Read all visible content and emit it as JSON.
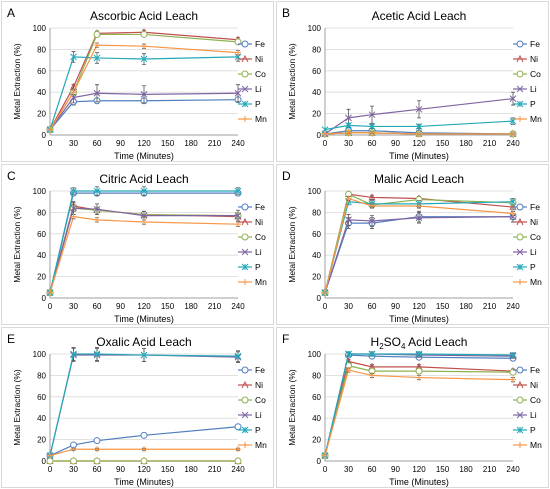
{
  "colors": {
    "Fe": "#4f7fbf",
    "Ni": "#c0504d",
    "Co": "#8db24f",
    "Li": "#8064a2",
    "P": "#23a8b8",
    "Mn": "#f79646"
  },
  "chart_data": [
    {
      "panel_letter": "A",
      "type": "line",
      "title": "Ascorbic Acid Leach",
      "title_sub": "",
      "title_post": "",
      "xlabel": "Time (Minutes)",
      "ylabel": "Metal Extraction (%)",
      "x": [
        0,
        30,
        60,
        120,
        240
      ],
      "xticks": [
        "0",
        "30",
        "60",
        "90",
        "120",
        "150",
        "180",
        "210",
        "240"
      ],
      "yticks": [
        "0",
        "20",
        "40",
        "60",
        "80",
        "100"
      ],
      "xlim": [
        0,
        240
      ],
      "ylim": [
        0,
        100
      ],
      "legend": "right",
      "series": [
        {
          "name": "Fe",
          "values": [
            5,
            31,
            32,
            32,
            33
          ],
          "errors": [
            0,
            3,
            2,
            2,
            2
          ]
        },
        {
          "name": "Ni",
          "values": [
            5,
            45,
            95,
            96,
            89
          ],
          "errors": [
            0,
            2,
            2,
            2,
            2
          ]
        },
        {
          "name": "Co",
          "values": [
            5,
            40,
            94,
            94,
            87
          ],
          "errors": [
            0,
            2,
            2,
            2,
            2
          ]
        },
        {
          "name": "Li",
          "values": [
            5,
            35,
            39,
            38,
            39
          ],
          "errors": [
            0,
            5,
            8,
            8,
            8
          ]
        },
        {
          "name": "P",
          "values": [
            5,
            73,
            72,
            71,
            73
          ],
          "errors": [
            0,
            5,
            5,
            5,
            4
          ]
        },
        {
          "name": "Mn",
          "values": [
            5,
            40,
            84,
            83,
            77
          ],
          "errors": [
            0,
            2,
            2,
            2,
            2
          ]
        }
      ]
    },
    {
      "panel_letter": "B",
      "type": "line",
      "title": "Acetic Acid Leach",
      "title_sub": "",
      "title_post": "",
      "xlabel": "Time (Minutes)",
      "ylabel": "Metal Extraction (%)",
      "x": [
        0,
        30,
        60,
        120,
        240
      ],
      "xticks": [
        "0",
        "30",
        "60",
        "90",
        "120",
        "150",
        "180",
        "210",
        "240"
      ],
      "yticks": [
        "0",
        "20",
        "40",
        "60",
        "80",
        "100"
      ],
      "xlim": [
        0,
        240
      ],
      "ylim": [
        0,
        100
      ],
      "legend": "right",
      "series": [
        {
          "name": "Fe",
          "values": [
            1,
            4,
            4,
            2,
            1
          ],
          "errors": [
            0,
            2,
            2,
            2,
            1
          ]
        },
        {
          "name": "Ni",
          "values": [
            1,
            2,
            2,
            1,
            1
          ],
          "errors": [
            0,
            1,
            1,
            1,
            1
          ]
        },
        {
          "name": "Co",
          "values": [
            1,
            2,
            2,
            1,
            1
          ],
          "errors": [
            0,
            1,
            1,
            1,
            1
          ]
        },
        {
          "name": "Li",
          "values": [
            1,
            16,
            19,
            24,
            34
          ],
          "errors": [
            0,
            8,
            8,
            8,
            6
          ]
        },
        {
          "name": "P",
          "values": [
            5,
            9,
            8,
            8,
            13
          ],
          "errors": [
            0,
            2,
            2,
            2,
            3
          ]
        },
        {
          "name": "Mn",
          "values": [
            1,
            2,
            2,
            1,
            1
          ],
          "errors": [
            0,
            1,
            1,
            1,
            1
          ]
        }
      ]
    },
    {
      "panel_letter": "C",
      "type": "line",
      "title": "Citric Acid Leach",
      "title_sub": "",
      "title_post": "",
      "xlabel": "Time (Minutes)",
      "ylabel": "Metal Extraction (%)",
      "x": [
        0,
        30,
        60,
        120,
        240
      ],
      "xticks": [
        "0",
        "30",
        "60",
        "90",
        "120",
        "150",
        "180",
        "210",
        "240"
      ],
      "yticks": [
        "0",
        "20",
        "40",
        "60",
        "80",
        "100"
      ],
      "xlim": [
        0,
        240
      ],
      "ylim": [
        0,
        100
      ],
      "legend": "right",
      "series": [
        {
          "name": "Fe",
          "values": [
            5,
            98,
            98,
            98,
            98
          ],
          "errors": [
            0,
            2,
            2,
            2,
            2
          ]
        },
        {
          "name": "Ni",
          "values": [
            5,
            86,
            82,
            78,
            76
          ],
          "errors": [
            0,
            3,
            2,
            2,
            2
          ]
        },
        {
          "name": "Co",
          "values": [
            5,
            84,
            82,
            78,
            77
          ],
          "errors": [
            0,
            3,
            2,
            2,
            2
          ]
        },
        {
          "name": "Li",
          "values": [
            5,
            84,
            83,
            77,
            77
          ],
          "errors": [
            0,
            6,
            5,
            4,
            5
          ]
        },
        {
          "name": "P",
          "values": [
            5,
            100,
            100,
            100,
            100
          ],
          "errors": [
            0,
            3,
            4,
            4,
            3
          ]
        },
        {
          "name": "Mn",
          "values": [
            5,
            76,
            73,
            71,
            69
          ],
          "errors": [
            0,
            2,
            2,
            2,
            2
          ]
        }
      ]
    },
    {
      "panel_letter": "D",
      "type": "line",
      "title": "Malic Acid Leach",
      "title_sub": "",
      "title_post": "",
      "xlabel": "Time (Minutes)",
      "ylabel": "Metal Extraction (%)",
      "x": [
        0,
        30,
        60,
        120,
        240
      ],
      "xticks": [
        "0",
        "30",
        "60",
        "90",
        "120",
        "150",
        "180",
        "210",
        "240"
      ],
      "yticks": [
        "0",
        "20",
        "40",
        "60",
        "80",
        "100"
      ],
      "xlim": [
        0,
        240
      ],
      "ylim": [
        0,
        100
      ],
      "legend": "right",
      "series": [
        {
          "name": "Fe",
          "values": [
            5,
            70,
            70,
            76,
            76
          ],
          "errors": [
            0,
            5,
            5,
            5,
            5
          ]
        },
        {
          "name": "Ni",
          "values": [
            5,
            97,
            94,
            93,
            85
          ],
          "errors": [
            0,
            2,
            2,
            2,
            2
          ]
        },
        {
          "name": "Co",
          "values": [
            5,
            97,
            87,
            92,
            89
          ],
          "errors": [
            0,
            2,
            2,
            2,
            2
          ]
        },
        {
          "name": "Li",
          "values": [
            5,
            73,
            72,
            75,
            76
          ],
          "errors": [
            0,
            5,
            5,
            5,
            5
          ]
        },
        {
          "name": "P",
          "values": [
            5,
            90,
            88,
            88,
            90
          ],
          "errors": [
            0,
            3,
            3,
            3,
            3
          ]
        },
        {
          "name": "Mn",
          "values": [
            5,
            93,
            86,
            86,
            79
          ],
          "errors": [
            0,
            2,
            2,
            2,
            2
          ]
        }
      ]
    },
    {
      "panel_letter": "E",
      "type": "line",
      "title": "Oxalic Acid Leach",
      "title_sub": "",
      "title_post": "",
      "xlabel": "Time (Minutes)",
      "ylabel": "Metal Extraction (%)",
      "x": [
        0,
        30,
        60,
        120,
        240
      ],
      "xticks": [
        "0",
        "30",
        "60",
        "90",
        "120",
        "150",
        "180",
        "210",
        "240"
      ],
      "yticks": [
        "0",
        "20",
        "40",
        "60",
        "80",
        "100"
      ],
      "xlim": [
        0,
        240
      ],
      "ylim": [
        0,
        100
      ],
      "legend": "right",
      "series": [
        {
          "name": "Fe",
          "values": [
            5,
            15,
            19,
            24,
            32
          ],
          "errors": [
            0,
            1,
            1,
            1,
            1
          ]
        },
        {
          "name": "Ni",
          "values": [
            0,
            0,
            0,
            0,
            0
          ],
          "errors": [
            0,
            0,
            0,
            0,
            0
          ]
        },
        {
          "name": "Co",
          "values": [
            0,
            0,
            0,
            0,
            0
          ],
          "errors": [
            0,
            0,
            0,
            0,
            0
          ]
        },
        {
          "name": "Li",
          "values": [
            5,
            99,
            99,
            99,
            97
          ],
          "errors": [
            0,
            6,
            6,
            6,
            5
          ]
        },
        {
          "name": "P",
          "values": [
            5,
            100,
            100,
            99,
            98
          ],
          "errors": [
            0,
            6,
            6,
            6,
            5
          ]
        },
        {
          "name": "Mn",
          "values": [
            5,
            11,
            11,
            11,
            11
          ],
          "errors": [
            0,
            1,
            1,
            1,
            1
          ]
        }
      ]
    },
    {
      "panel_letter": "F",
      "type": "line",
      "title": "H",
      "title_sub": "2",
      "title_post": "SO",
      "title_sub2": "4",
      "title_tail": " Acid Leach",
      "xlabel": "Time (Minutes)",
      "ylabel": "Metal Extraction (%)",
      "x": [
        0,
        30,
        60,
        120,
        240
      ],
      "xticks": [
        "0",
        "30",
        "60",
        "90",
        "120",
        "150",
        "180",
        "210",
        "240"
      ],
      "yticks": [
        "0",
        "20",
        "40",
        "60",
        "80",
        "100"
      ],
      "xlim": [
        0,
        240
      ],
      "ylim": [
        0,
        100
      ],
      "legend": "right",
      "series": [
        {
          "name": "Fe",
          "values": [
            5,
            99,
            98,
            97,
            96
          ],
          "errors": [
            0,
            2,
            2,
            2,
            2
          ]
        },
        {
          "name": "Ni",
          "values": [
            5,
            93,
            88,
            88,
            84
          ],
          "errors": [
            0,
            2,
            2,
            2,
            2
          ]
        },
        {
          "name": "Co",
          "values": [
            5,
            89,
            84,
            84,
            83
          ],
          "errors": [
            0,
            2,
            2,
            2,
            2
          ]
        },
        {
          "name": "Li",
          "values": [
            5,
            100,
            100,
            99,
            98
          ],
          "errors": [
            0,
            2,
            2,
            2,
            2
          ]
        },
        {
          "name": "P",
          "values": [
            5,
            100,
            100,
            100,
            99
          ],
          "errors": [
            0,
            2,
            2,
            2,
            2
          ]
        },
        {
          "name": "Mn",
          "values": [
            5,
            85,
            80,
            78,
            76
          ],
          "errors": [
            0,
            2,
            2,
            2,
            2
          ]
        }
      ]
    }
  ]
}
